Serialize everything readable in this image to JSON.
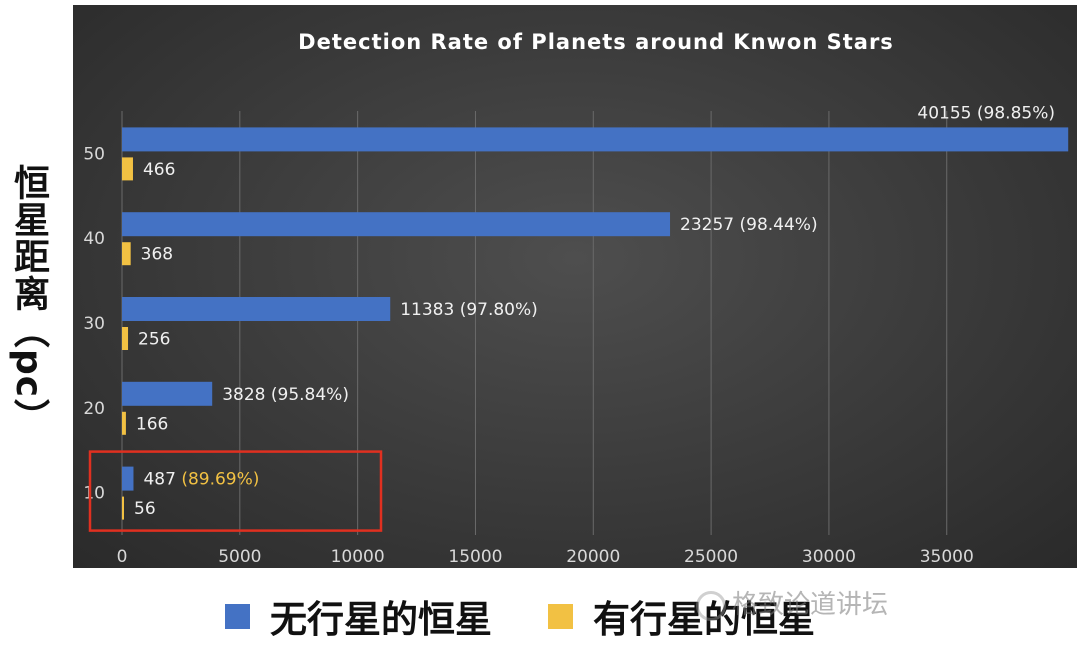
{
  "colors": {
    "no_planet": "#4472c4",
    "with_planet": "#f2c143",
    "highlight_box": "#e03020",
    "highlight_text": "#f2c143"
  },
  "legend": {
    "no_planet_label": "无行星的恒星",
    "with_planet_label": "有行星的恒星"
  },
  "watermark": {
    "text": "格致论道讲坛",
    "icon": "wechat-icon"
  },
  "chart_data": {
    "type": "bar",
    "orientation": "horizontal",
    "title": "Detection Rate of Planets around Knwon Stars",
    "ylabel": "恒星距离（pc）",
    "xlabel": "",
    "categories": [
      "10",
      "20",
      "30",
      "40",
      "50"
    ],
    "series": [
      {
        "name": "无行星的恒星",
        "values": [
          487,
          3828,
          11383,
          23257,
          40155
        ],
        "labels": [
          "487",
          "3828",
          "11383",
          "23257",
          "40155"
        ],
        "percents": [
          "(89.69%)",
          "(95.84%)",
          "(97.80%)",
          "(98.44%)",
          "(98.85%)"
        ]
      },
      {
        "name": "有行星的恒星",
        "values": [
          56,
          166,
          256,
          368,
          466
        ],
        "labels": [
          "56",
          "166",
          "256",
          "368",
          "466"
        ]
      }
    ],
    "xlim": [
      0,
      39000
    ],
    "xticks": [
      0,
      5000,
      10000,
      15000,
      20000,
      25000,
      30000,
      35000
    ],
    "xtick_labels": [
      "0",
      "5000",
      "10000",
      "15000",
      "20000",
      "25000",
      "30000",
      "35000"
    ],
    "grid": true,
    "highlight_category": "10",
    "legend_position": "bottom"
  }
}
